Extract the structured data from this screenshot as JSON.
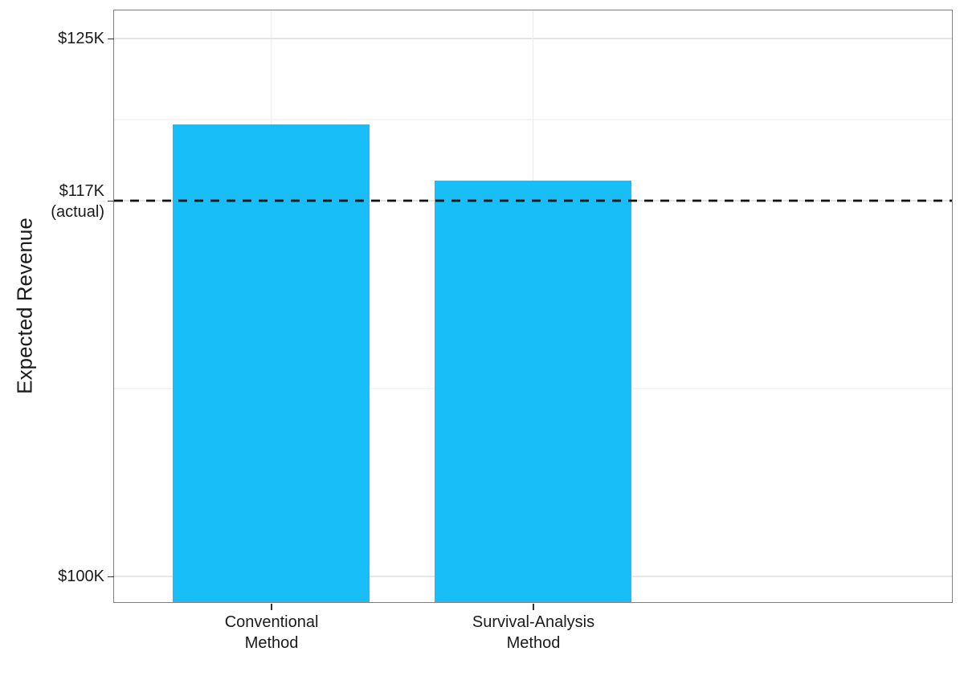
{
  "chart_data": {
    "type": "bar",
    "title": "",
    "ylabel": "Expected Revenue",
    "xlabel": "",
    "categories": [
      {
        "id": "conventional-method",
        "lines": [
          "Conventional",
          "Method"
        ]
      },
      {
        "id": "survival-analysis-method",
        "lines": [
          "Survival-Analysis",
          "Method"
        ]
      }
    ],
    "values": [
      121.0,
      118.4
    ],
    "value_unit": "thousand dollars (read from $K axis)",
    "ylim": [
      98.8,
      126.3
    ],
    "y_ticks": [
      {
        "value": 125,
        "lines": [
          "$125K"
        ]
      },
      {
        "value": 117.45,
        "lines": [
          "$117K",
          "(actual)"
        ]
      },
      {
        "value": 100,
        "lines": [
          "$100K"
        ]
      }
    ],
    "y_minor_breaks": [
      121.22,
      108.72
    ],
    "reference_line": {
      "value": 117.45,
      "label": "$117K (actual)",
      "pattern": "dashed"
    },
    "legend_position": "none",
    "grid": "on"
  },
  "colors": {
    "bar_fill": "#18BEF8",
    "panel_border": "#808080",
    "grid_major": "#E6E6E6",
    "grid_minor": "#F4F4F4",
    "tick_mark": "#333333",
    "text": "#1A1A1A",
    "reference_line": "#111111",
    "background": "#FFFFFF"
  }
}
